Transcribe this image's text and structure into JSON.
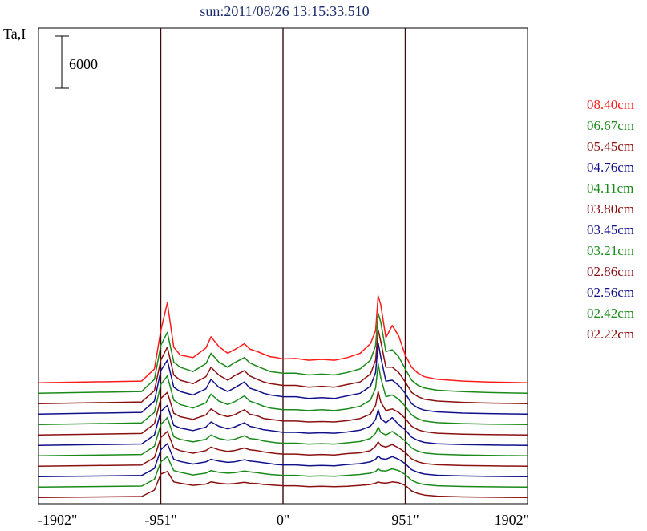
{
  "chart_data": {
    "type": "line",
    "title": "sun:2011/08/26 13:15:33.510",
    "ylabel": "Ta,I",
    "xlabel": "",
    "x_ticks": [
      {
        "value": -1902,
        "label": "-1902\""
      },
      {
        "value": -951,
        "label": "-951\""
      },
      {
        "value": 0,
        "label": "0\""
      },
      {
        "value": 951,
        "label": "951\""
      },
      {
        "value": 1902,
        "label": "1902\""
      }
    ],
    "xlim": [
      -1902,
      1902
    ],
    "vertical_lines": [
      -951,
      0,
      951
    ],
    "scale_bar": {
      "label": "6000",
      "value": 6000
    },
    "spectra_scale": {
      "xs": [
        -1902,
        -1100,
        -1000,
        -951,
        -900,
        -850,
        -800,
        -700,
        -600,
        -560,
        -500,
        -430,
        -380,
        -300,
        -260,
        -200,
        -150,
        -100,
        -50,
        0,
        100,
        200,
        300,
        400,
        500,
        600,
        680,
        720,
        740,
        760,
        800,
        850,
        900,
        951,
        1000,
        1050,
        1100,
        1200,
        1400,
        1600,
        1902
      ]
    },
    "series": [
      {
        "name": "08.40cm",
        "color": "#ff1a1a",
        "offset": 12900,
        "values": [
          0,
          200,
          1600,
          6000,
          9200,
          4100,
          3200,
          2900,
          4000,
          5300,
          4200,
          3400,
          3800,
          4500,
          3900,
          3600,
          3300,
          3000,
          2900,
          2750,
          2800,
          2600,
          2700,
          2600,
          2900,
          3400,
          4500,
          6000,
          10000,
          9000,
          5200,
          6600,
          5400,
          3200,
          1800,
          1100,
          700,
          400,
          200,
          100,
          0
        ]
      },
      {
        "name": "06.67cm",
        "color": "#1a8a1a",
        "offset": 11700,
        "values": [
          0,
          200,
          1600,
          5500,
          7000,
          3600,
          3000,
          2500,
          3400,
          4600,
          3600,
          3000,
          3500,
          4100,
          3500,
          3100,
          2800,
          2500,
          2400,
          2300,
          2300,
          2100,
          2200,
          2100,
          2400,
          2800,
          3800,
          5500,
          9200,
          8200,
          4800,
          5000,
          4200,
          2800,
          1500,
          900,
          600,
          350,
          180,
          80,
          0
        ]
      },
      {
        "name": "05.45cm",
        "color": "#8b1010",
        "offset": 10500,
        "values": [
          0,
          200,
          1500,
          5000,
          6500,
          3300,
          2700,
          2300,
          3100,
          4200,
          3300,
          2700,
          3200,
          3800,
          3200,
          2800,
          2500,
          2300,
          2200,
          2100,
          2100,
          1900,
          2000,
          1900,
          2200,
          2500,
          3400,
          5000,
          8500,
          7200,
          4200,
          4200,
          3600,
          2500,
          1300,
          800,
          500,
          300,
          150,
          70,
          0
        ]
      },
      {
        "name": "04.76cm",
        "color": "#10108b",
        "offset": 9300,
        "values": [
          0,
          200,
          1500,
          5000,
          6200,
          3100,
          2600,
          2200,
          2900,
          4000,
          3100,
          2600,
          3000,
          3700,
          3000,
          2700,
          2400,
          2200,
          2100,
          2000,
          2000,
          1800,
          1900,
          1800,
          2100,
          2400,
          3200,
          4800,
          8200,
          6600,
          3800,
          3900,
          3300,
          2400,
          1200,
          700,
          450,
          250,
          120,
          60,
          0
        ]
      },
      {
        "name": "04.11cm",
        "color": "#1a8a1a",
        "offset": 8100,
        "values": [
          0,
          180,
          1400,
          4600,
          5600,
          2800,
          2300,
          1900,
          2500,
          3500,
          2700,
          2300,
          2600,
          3300,
          2700,
          2400,
          2100,
          1900,
          1800,
          1700,
          1700,
          1600,
          1700,
          1600,
          1800,
          2100,
          2800,
          4200,
          7000,
          5400,
          3200,
          3400,
          2900,
          2100,
          1100,
          650,
          400,
          220,
          110,
          50,
          0
        ]
      },
      {
        "name": "03.80cm",
        "color": "#8b1010",
        "offset": 6900,
        "values": [
          0,
          170,
          1300,
          4200,
          4900,
          2500,
          2100,
          1800,
          2300,
          3000,
          2400,
          2100,
          2300,
          2900,
          2400,
          2200,
          1900,
          1800,
          1700,
          1600,
          1600,
          1500,
          1550,
          1500,
          1650,
          1900,
          2400,
          3400,
          5000,
          3800,
          2800,
          3000,
          2600,
          1900,
          1000,
          600,
          380,
          200,
          100,
          50,
          0
        ]
      },
      {
        "name": "03.45cm",
        "color": "#10108b",
        "offset": 5700,
        "values": [
          0,
          160,
          1200,
          3900,
          4600,
          2300,
          2000,
          1700,
          2100,
          2700,
          2200,
          1900,
          2100,
          2600,
          2200,
          2000,
          1800,
          1700,
          1600,
          1500,
          1500,
          1400,
          1450,
          1400,
          1550,
          1750,
          2200,
          3000,
          4100,
          3100,
          2600,
          3200,
          2400,
          1800,
          950,
          560,
          350,
          190,
          90,
          40,
          0
        ]
      },
      {
        "name": "03.21cm",
        "color": "#1a8a1a",
        "offset": 4500,
        "values": [
          0,
          150,
          1100,
          3600,
          4400,
          2200,
          1900,
          1600,
          1900,
          2400,
          2000,
          1800,
          1900,
          2300,
          2000,
          1900,
          1700,
          1600,
          1500,
          1450,
          1450,
          1350,
          1400,
          1350,
          1500,
          1650,
          2000,
          2600,
          3300,
          2700,
          2400,
          2800,
          2300,
          1700,
          900,
          530,
          330,
          180,
          85,
          40,
          0
        ]
      },
      {
        "name": "02.86cm",
        "color": "#8b1010",
        "offset": 3300,
        "values": [
          0,
          140,
          1000,
          3300,
          4000,
          2100,
          1800,
          1500,
          1800,
          2200,
          1900,
          1700,
          1800,
          2100,
          1900,
          1800,
          1650,
          1550,
          1450,
          1400,
          1400,
          1300,
          1350,
          1300,
          1450,
          1550,
          1800,
          2300,
          2800,
          2400,
          2200,
          2500,
          2100,
          1600,
          850,
          500,
          310,
          170,
          80,
          40,
          0
        ]
      },
      {
        "name": "02.56cm",
        "color": "#10108b",
        "offset": 2100,
        "values": [
          0,
          130,
          950,
          3100,
          3800,
          2000,
          1750,
          1450,
          1700,
          2000,
          1800,
          1650,
          1700,
          1950,
          1800,
          1700,
          1600,
          1500,
          1400,
          1350,
          1350,
          1250,
          1300,
          1250,
          1400,
          1500,
          1700,
          2000,
          2400,
          2100,
          2000,
          2300,
          2000,
          1500,
          800,
          480,
          300,
          160,
          75,
          35,
          0
        ]
      },
      {
        "name": "02.42cm",
        "color": "#1a8a1a",
        "offset": 900,
        "values": [
          0,
          120,
          900,
          2900,
          3500,
          1900,
          1700,
          1400,
          1600,
          1900,
          1700,
          1600,
          1650,
          1850,
          1750,
          1650,
          1550,
          1450,
          1400,
          1350,
          1350,
          1250,
          1300,
          1250,
          1350,
          1450,
          1600,
          1800,
          2100,
          1900,
          1850,
          2100,
          1900,
          1450,
          780,
          460,
          290,
          155,
          70,
          35,
          0
        ]
      },
      {
        "name": "02.22cm",
        "color": "#8b1010",
        "offset": -300,
        "values": [
          0,
          120,
          850,
          2700,
          3000,
          1800,
          1650,
          1400,
          1550,
          1800,
          1650,
          1550,
          1600,
          1750,
          1650,
          1600,
          1500,
          1450,
          1400,
          1350,
          1350,
          1250,
          1300,
          1250,
          1300,
          1400,
          1500,
          1650,
          1800,
          1700,
          1650,
          1800,
          1700,
          1400,
          760,
          450,
          280,
          150,
          70,
          35,
          0
        ]
      }
    ]
  }
}
